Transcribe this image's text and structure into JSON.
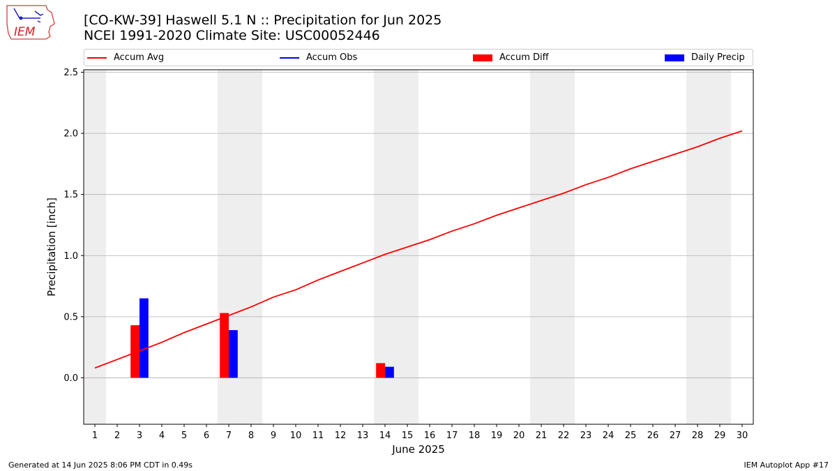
{
  "header": {
    "title_line1": "[CO-KW-39] Haswell 5.1 N :: Precipitation for Jun 2025",
    "title_line2": "NCEI 1991-2020 Climate Site: USC00052446"
  },
  "logo": {
    "text": "IEM",
    "icon": "iowa-state-outline-weather-icon"
  },
  "footer": {
    "generated": "Generated at 14 Jun 2025 8:06 PM CDT in 0.49s",
    "app": "IEM Autoplot App #17"
  },
  "colors": {
    "accum_avg": "#ff0000",
    "accum_obs": "#0000ff",
    "accum_diff": "#ff0000",
    "daily_precip": "#0000ff",
    "weekend_band": "#eeeeee",
    "grid": "#b0b0b0"
  },
  "chart_data": {
    "type": "bar",
    "xlabel": "June 2025",
    "ylabel": "Precipitation [inch]",
    "xlim": [
      0.5,
      30.5
    ],
    "ylim": [
      -0.38,
      2.52
    ],
    "yticks": [
      0.0,
      0.5,
      1.0,
      1.5,
      2.0,
      2.5
    ],
    "ytick_labels": [
      "0.0",
      "0.5",
      "1.0",
      "1.5",
      "2.0",
      "2.5"
    ],
    "x": [
      1,
      2,
      3,
      4,
      5,
      6,
      7,
      8,
      9,
      10,
      11,
      12,
      13,
      14,
      15,
      16,
      17,
      18,
      19,
      20,
      21,
      22,
      23,
      24,
      25,
      26,
      27,
      28,
      29,
      30
    ],
    "weekend_bands": [
      [
        1,
        1
      ],
      [
        7,
        8
      ],
      [
        14,
        15
      ],
      [
        21,
        22
      ],
      [
        28,
        29
      ]
    ],
    "grid": "horizontal",
    "legend": {
      "placement": "top",
      "entries": [
        {
          "label": "Accum Avg",
          "kind": "line",
          "color": "#ff0000"
        },
        {
          "label": "Accum Obs",
          "kind": "line",
          "color": "#0000ff"
        },
        {
          "label": "Accum Diff",
          "kind": "patch",
          "color": "#ff0000"
        },
        {
          "label": "Daily Precip",
          "kind": "patch",
          "color": "#0000ff"
        }
      ]
    },
    "series": [
      {
        "name": "Accum Avg",
        "type": "line",
        "x": [
          1,
          2,
          3,
          4,
          5,
          6,
          7,
          8,
          9,
          10,
          11,
          12,
          13,
          14,
          15,
          16,
          17,
          18,
          19,
          20,
          21,
          22,
          23,
          24,
          25,
          26,
          27,
          28,
          29,
          30
        ],
        "values": [
          0.08,
          0.15,
          0.22,
          0.29,
          0.37,
          0.44,
          0.51,
          0.58,
          0.66,
          0.72,
          0.8,
          0.87,
          0.94,
          1.01,
          1.07,
          1.13,
          1.2,
          1.26,
          1.33,
          1.39,
          1.45,
          1.51,
          1.58,
          1.64,
          1.71,
          1.77,
          1.83,
          1.89,
          1.96,
          2.02
        ]
      },
      {
        "name": "Accum Diff",
        "type": "bar",
        "x": [
          3,
          7,
          14
        ],
        "values": [
          0.43,
          0.53,
          0.12
        ]
      },
      {
        "name": "Daily Precip",
        "type": "bar",
        "x": [
          3,
          7,
          14
        ],
        "values": [
          0.65,
          0.39,
          0.09
        ]
      }
    ]
  }
}
